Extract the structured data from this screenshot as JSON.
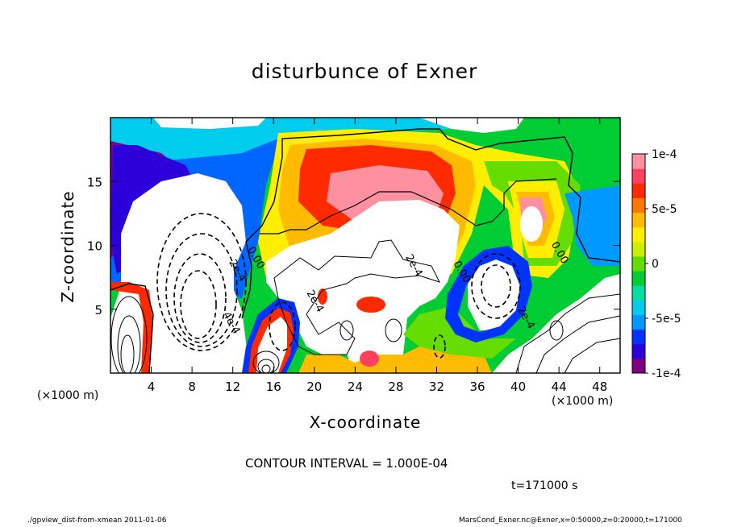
{
  "chart_data": {
    "type": "heatmap",
    "title": "disturbunce of Exner",
    "xlabel": "X-coordinate",
    "ylabel": "Z-coordinate",
    "x_unit": "(×1000 m)",
    "x_ticks": [
      "4",
      "8",
      "12",
      "16",
      "20",
      "24",
      "28",
      "32",
      "36",
      "40",
      "44",
      "48"
    ],
    "y_ticks": [
      "5",
      "10",
      "15"
    ],
    "xlim": [
      0,
      50
    ],
    "ylim": [
      0,
      20
    ],
    "colorbar": {
      "ticks": [
        "1e-4",
        "5e-5",
        "0",
        "-5e-5",
        "-1e-4"
      ],
      "tick_values": [
        0.0001,
        5e-05,
        0,
        -5e-05,
        -0.0001
      ],
      "range": [
        -0.0001,
        0.0001
      ],
      "colors": [
        "#7f007f",
        "#2b00d9",
        "#0033ff",
        "#0099ff",
        "#00ccee",
        "#00e0a0",
        "#00cc33",
        "#66dd00",
        "#ccee00",
        "#ffee00",
        "#ffbb00",
        "#ff7700",
        "#ff2a00",
        "#ff4060",
        "#ff90a0"
      ]
    },
    "contour_labels": [
      {
        "text": "0.00",
        "x": 14.0,
        "z": 8.9
      },
      {
        "text": "2e-4",
        "x": 12.2,
        "z": 7.9
      },
      {
        "text": "4e-4",
        "x": 11.6,
        "z": 3.8
      },
      {
        "text": "2e-4",
        "x": 19.8,
        "z": 5.5
      },
      {
        "text": "2e-4",
        "x": 29.5,
        "z": 8.3
      },
      {
        "text": "0.00",
        "x": 34.2,
        "z": 7.8
      },
      {
        "text": "0.00",
        "x": 43.8,
        "z": 9.3
      },
      {
        "text": "2e-4",
        "x": 40.5,
        "z": 4.2
      }
    ]
  },
  "texts": {
    "contour_interval": "CONTOUR INTERVAL = 1.000E-04",
    "time": "t=171000 s",
    "footer_left": "./gpview_dist-from-xmean  2011-01-06",
    "footer_right": "MarsCond_Exner.nc@Exner,x=0:50000,z=0:20000,t=171000"
  }
}
